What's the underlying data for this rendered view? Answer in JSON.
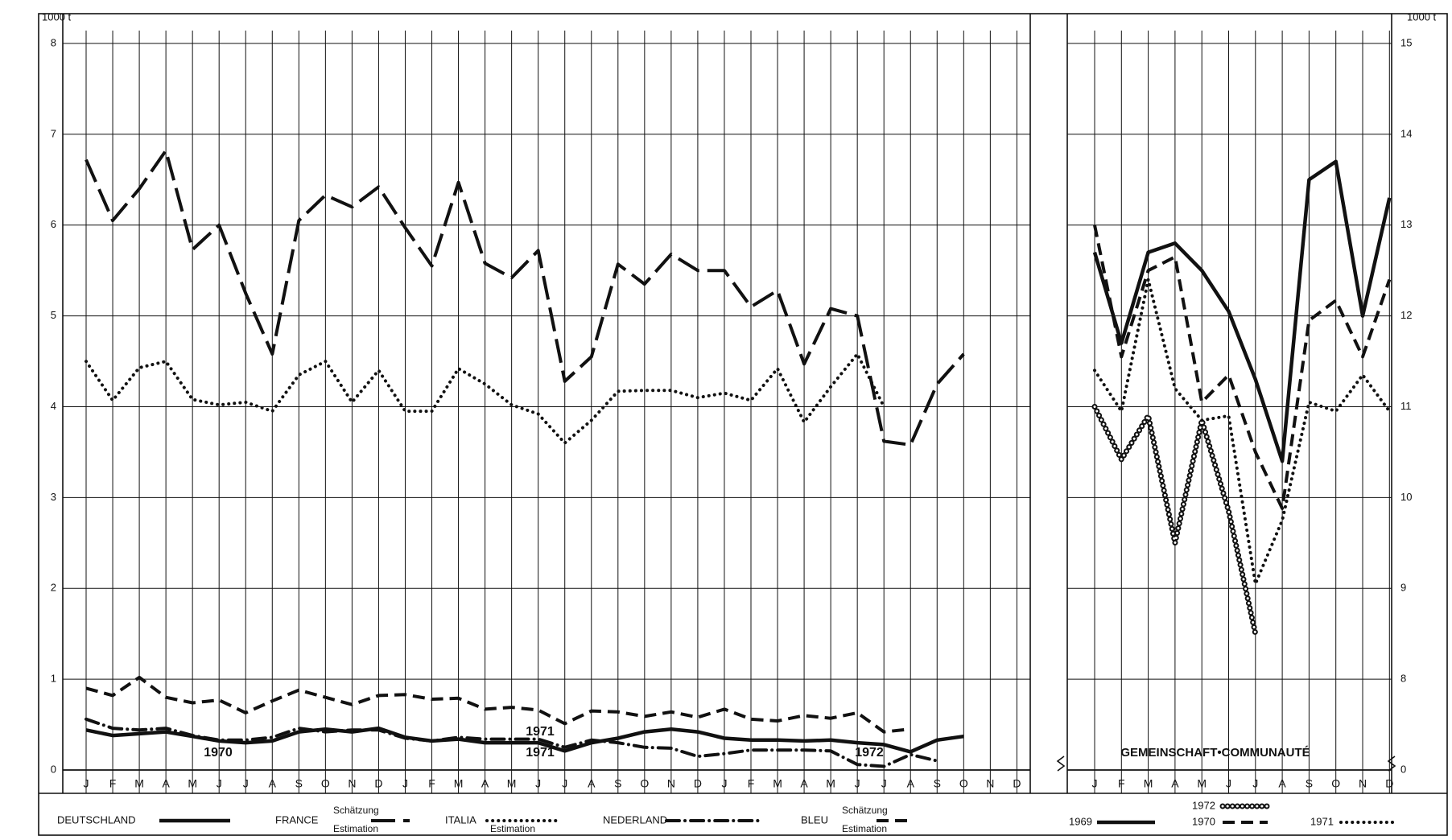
{
  "chart_data": [
    {
      "type": "line",
      "y_label": "1000 t",
      "categories": [
        "J",
        "F",
        "M",
        "A",
        "M",
        "J",
        "J",
        "A",
        "S",
        "O",
        "N",
        "D",
        "J",
        "F",
        "M",
        "A",
        "M",
        "J",
        "J",
        "A",
        "S",
        "O",
        "N",
        "D",
        "J",
        "F",
        "M",
        "A",
        "M",
        "J",
        "J",
        "A",
        "S",
        "O",
        "N",
        "D"
      ],
      "ylim": [
        0,
        8
      ],
      "yticks": [
        0,
        1,
        2,
        3,
        4,
        5,
        6,
        7,
        8
      ],
      "grid": true,
      "annotations": [
        "1970",
        "1971",
        "1971",
        "1972"
      ],
      "series": [
        {
          "name": "DEUTSCHLAND",
          "color": "#111111",
          "style": "solid",
          "values": [
            0.44,
            0.38,
            0.4,
            0.42,
            0.37,
            0.32,
            0.3,
            0.32,
            0.42,
            0.45,
            0.42,
            0.46,
            0.36,
            0.32,
            0.34,
            0.3,
            0.3,
            0.3,
            0.21,
            0.3,
            0.35,
            0.42,
            0.45,
            0.42,
            0.35,
            0.33,
            0.33,
            0.32,
            0.33,
            0.3,
            0.28,
            0.2,
            0.33,
            0.37,
            null,
            null
          ]
        },
        {
          "name": "FRANCE",
          "color": "#111111",
          "style": "long-dash",
          "notes": [
            "Schätzung",
            "Estimation"
          ],
          "values": [
            6.72,
            6.05,
            6.4,
            6.82,
            5.73,
            6.0,
            5.25,
            4.58,
            6.05,
            6.33,
            6.2,
            6.42,
            5.97,
            5.55,
            6.47,
            5.58,
            5.42,
            5.72,
            4.28,
            4.55,
            5.57,
            5.35,
            5.68,
            5.5,
            5.5,
            5.1,
            5.28,
            4.47,
            5.08,
            5.0,
            3.62,
            3.58,
            4.25,
            4.58,
            null,
            null
          ]
        },
        {
          "name": "ITALIA",
          "color": "#111111",
          "style": "dotted",
          "notes": [
            "Estimation"
          ],
          "values": [
            4.5,
            4.07,
            4.43,
            4.5,
            4.08,
            4.02,
            4.05,
            3.95,
            4.35,
            4.5,
            4.05,
            4.4,
            3.95,
            3.95,
            4.42,
            4.25,
            4.02,
            3.92,
            3.6,
            3.85,
            4.17,
            4.18,
            4.18,
            4.1,
            4.15,
            4.07,
            4.42,
            3.83,
            4.22,
            4.58,
            4.0,
            null,
            null,
            null,
            null,
            null
          ]
        },
        {
          "name": "NEDERLAND",
          "color": "#111111",
          "style": "dash-dot",
          "values": [
            0.56,
            0.46,
            0.44,
            0.46,
            0.38,
            0.33,
            0.33,
            0.36,
            0.46,
            0.42,
            0.44,
            0.44,
            0.35,
            0.32,
            0.36,
            0.34,
            0.34,
            0.34,
            0.25,
            0.33,
            0.3,
            0.25,
            0.24,
            0.15,
            0.18,
            0.22,
            0.22,
            0.22,
            0.21,
            0.06,
            0.04,
            0.17,
            0.1,
            null,
            null,
            null
          ]
        },
        {
          "name": "BLEU",
          "color": "#111111",
          "style": "dash",
          "notes": [
            "Schätzung",
            "Estimation"
          ],
          "values": [
            0.9,
            0.82,
            1.02,
            0.8,
            0.74,
            0.77,
            0.63,
            0.76,
            0.88,
            0.8,
            0.72,
            0.82,
            0.83,
            0.78,
            0.79,
            0.67,
            0.69,
            0.66,
            0.51,
            0.65,
            0.64,
            0.59,
            0.64,
            0.58,
            0.67,
            0.56,
            0.54,
            0.6,
            0.57,
            0.63,
            0.42,
            0.45,
            null,
            null,
            null,
            null
          ]
        }
      ]
    },
    {
      "type": "line",
      "y_label": "1000 t",
      "panel_label": "GEMEINSCHAFT•COMMUNAUTÉ",
      "categories": [
        "J",
        "F",
        "M",
        "A",
        "M",
        "J",
        "J",
        "A",
        "S",
        "O",
        "N",
        "D"
      ],
      "ylim": [
        0,
        15
      ],
      "axis_break": 8,
      "yticks": [
        0,
        8,
        9,
        10,
        11,
        12,
        13,
        14,
        15
      ],
      "grid": true,
      "series": [
        {
          "name": "1969",
          "color": "#111111",
          "style": "solid",
          "values": [
            12.7,
            11.7,
            12.7,
            12.8,
            12.5,
            12.05,
            11.3,
            10.4,
            13.5,
            13.7,
            12.0,
            13.3
          ]
        },
        {
          "name": "1972",
          "color": "#111111",
          "style": "circles",
          "values": [
            11.0,
            10.42,
            10.9,
            9.5,
            10.85,
            9.85,
            8.5,
            null,
            null,
            null,
            null,
            null
          ]
        },
        {
          "name": "1970",
          "color": "#111111",
          "style": "dash",
          "values": [
            13.0,
            11.55,
            12.5,
            12.65,
            11.05,
            11.35,
            10.5,
            9.88,
            11.95,
            12.17,
            11.55,
            12.4
          ]
        },
        {
          "name": "1971",
          "color": "#111111",
          "style": "dotted",
          "values": [
            11.4,
            10.95,
            12.4,
            11.2,
            10.85,
            10.9,
            9.05,
            9.75,
            11.05,
            10.95,
            11.35,
            10.95
          ]
        }
      ]
    }
  ]
}
